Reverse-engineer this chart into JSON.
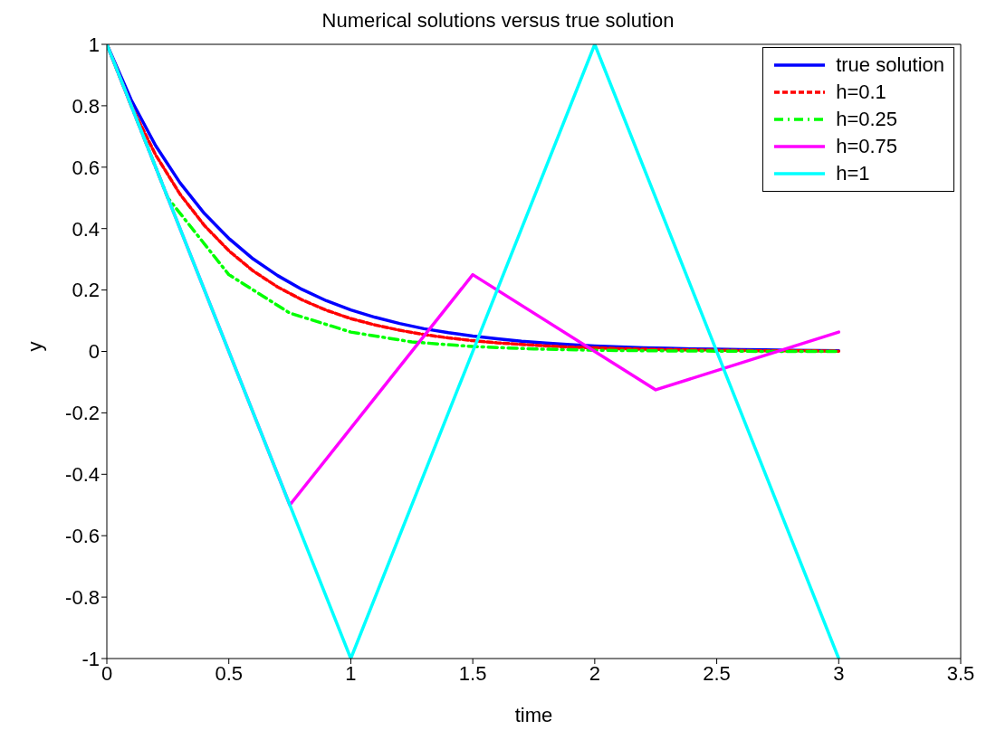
{
  "chart_data": {
    "type": "line",
    "title": "Numerical solutions versus true solution",
    "xlabel": "time",
    "ylabel": "y",
    "xlim": [
      0,
      3.5
    ],
    "xticks": [
      0,
      0.5,
      1,
      1.5,
      2,
      2.5,
      3,
      3.5
    ],
    "ylim": [
      -1,
      1
    ],
    "yticks": [
      -1,
      -0.8,
      -0.6,
      -0.4,
      -0.2,
      0,
      0.2,
      0.4,
      0.6,
      0.8,
      1
    ],
    "grid": false,
    "legend": "top right",
    "marker": "none",
    "series": [
      {
        "name": "true solution",
        "color": "#0000ff",
        "line_style": "solid",
        "x": [
          0,
          0.1,
          0.2,
          0.3,
          0.4,
          0.5,
          0.6,
          0.7,
          0.8,
          0.9,
          1,
          1.1,
          1.2,
          1.3,
          1.4,
          1.5,
          1.6,
          1.7,
          1.8,
          1.9,
          2,
          2.1,
          2.2,
          2.3,
          2.4,
          2.5,
          2.6,
          2.7,
          2.8,
          2.9,
          3
        ],
        "values": [
          1,
          0.819,
          0.67,
          0.549,
          0.449,
          0.368,
          0.301,
          0.247,
          0.202,
          0.165,
          0.135,
          0.111,
          0.091,
          0.074,
          0.061,
          0.05,
          0.041,
          0.033,
          0.027,
          0.022,
          0.018,
          0.015,
          0.012,
          0.01,
          0.008,
          0.007,
          0.006,
          0.005,
          0.004,
          0.003,
          0.002
        ]
      },
      {
        "name": "h=0.1",
        "color": "#ff0000",
        "line_style": "dashed",
        "x": [
          0,
          0.1,
          0.2,
          0.3,
          0.4,
          0.5,
          0.6,
          0.7,
          0.8,
          0.9,
          1,
          1.1,
          1.2,
          1.3,
          1.4,
          1.5,
          1.6,
          1.7,
          1.8,
          1.9,
          2,
          2.1,
          2.2,
          2.3,
          2.4,
          2.5,
          2.6,
          2.7,
          2.8,
          2.9,
          3
        ],
        "values": [
          1,
          0.8,
          0.64,
          0.512,
          0.41,
          0.328,
          0.262,
          0.21,
          0.168,
          0.134,
          0.107,
          0.086,
          0.069,
          0.055,
          0.044,
          0.035,
          0.028,
          0.023,
          0.018,
          0.014,
          0.012,
          0.009,
          0.007,
          0.006,
          0.005,
          0.004,
          0.003,
          0.002,
          0.002,
          0.002,
          0.001
        ]
      },
      {
        "name": "h=0.25",
        "color": "#00ff00",
        "line_style": "dashdot",
        "x": [
          0,
          0.25,
          0.5,
          0.75,
          1,
          1.25,
          1.5,
          1.75,
          2,
          2.25,
          2.5,
          2.75,
          3
        ],
        "values": [
          1,
          0.5,
          0.25,
          0.125,
          0.063,
          0.031,
          0.016,
          0.008,
          0.004,
          0.002,
          0.001,
          0,
          0
        ]
      },
      {
        "name": "h=0.75",
        "color": "#ff00ff",
        "line_style": "solid",
        "x": [
          0,
          0.75,
          1.5,
          2.25,
          3
        ],
        "values": [
          1,
          -0.5,
          0.25,
          -0.125,
          0.063
        ]
      },
      {
        "name": "h=1",
        "color": "#00ffff",
        "line_style": "solid",
        "x": [
          0,
          1,
          2,
          3
        ],
        "values": [
          1,
          -1,
          1,
          -1
        ]
      }
    ]
  }
}
